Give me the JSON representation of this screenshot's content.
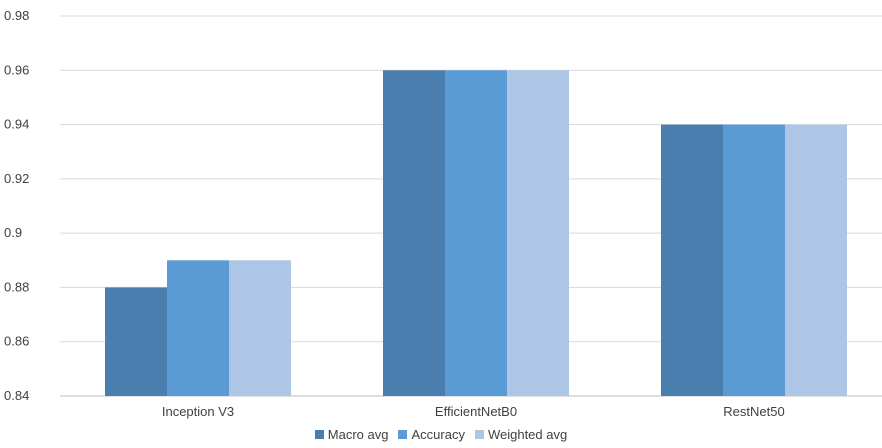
{
  "chart_data": {
    "type": "bar",
    "categories": [
      "Inception V3",
      "EfficientNetB0",
      "RestNet50"
    ],
    "series": [
      {
        "name": "Macro avg",
        "values": [
          0.88,
          0.96,
          0.94
        ],
        "color": "#4a7eaf"
      },
      {
        "name": "Accuracy",
        "values": [
          0.89,
          0.96,
          0.94
        ],
        "color": "#5b9bd5"
      },
      {
        "name": "Weighted avg",
        "values": [
          0.89,
          0.96,
          0.94
        ],
        "color": "#aec6e5"
      }
    ],
    "yticks": [
      "0.84",
      "0.86",
      "0.88",
      "0.9",
      "0.92",
      "0.94",
      "0.96",
      "0.98"
    ],
    "ylim": [
      0.84,
      0.98
    ],
    "grid": true,
    "legend_position": "bottom"
  }
}
